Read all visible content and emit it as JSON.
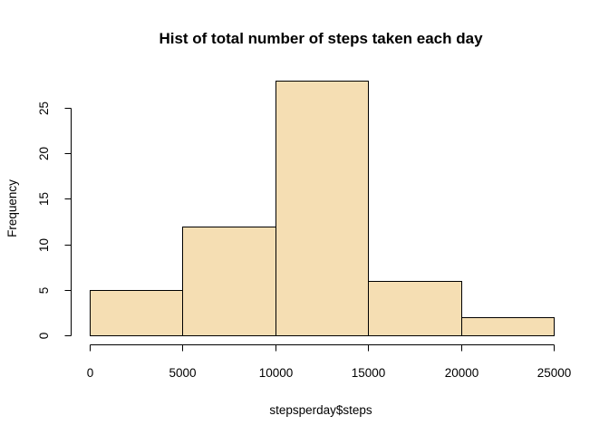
{
  "chart_data": {
    "type": "bar",
    "title": "Hist of total number of steps taken each day",
    "xlabel": "stepsperday$steps",
    "ylabel": "Frequency",
    "bins": [
      {
        "from": 0,
        "to": 5000,
        "count": 5
      },
      {
        "from": 5000,
        "to": 10000,
        "count": 12
      },
      {
        "from": 10000,
        "to": 15000,
        "count": 28
      },
      {
        "from": 15000,
        "to": 20000,
        "count": 6
      },
      {
        "from": 20000,
        "to": 25000,
        "count": 2
      }
    ],
    "xlim": [
      0,
      25000
    ],
    "ylim": [
      0,
      28
    ],
    "x_ticks": [
      0,
      5000,
      10000,
      15000,
      20000,
      25000
    ],
    "x_tick_labels": [
      "0",
      "5000",
      "10000",
      "15000",
      "20000",
      "25000"
    ],
    "y_ticks": [
      0,
      5,
      10,
      15,
      20,
      25
    ],
    "y_tick_labels": [
      "0",
      "5",
      "10",
      "15",
      "20",
      "25"
    ],
    "bar_color": "#F5DEB3",
    "grid": false
  }
}
